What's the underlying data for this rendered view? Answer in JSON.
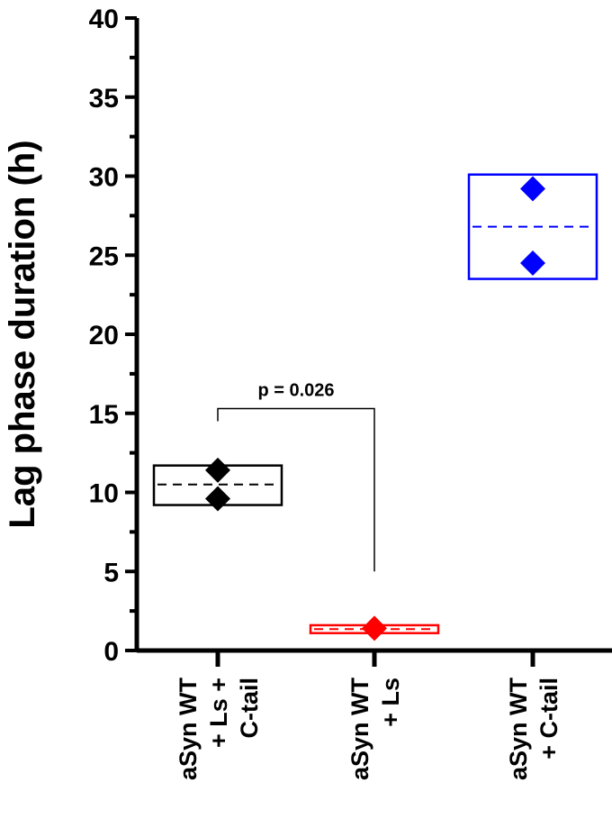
{
  "chart_data": {
    "type": "box",
    "ylabel": "Lag phase duration (h)",
    "ylim": [
      0,
      40
    ],
    "yticks": [
      "0",
      "5",
      "10",
      "15",
      "20",
      "25",
      "30",
      "35",
      "40"
    ],
    "groups": [
      {
        "label_lines": [
          "aSyn WT",
          "+ Ls +",
          "C-tail"
        ],
        "color": "#000000",
        "box": [
          9.2,
          11.7
        ],
        "mean": 10.5,
        "points": [
          11.4,
          9.6
        ]
      },
      {
        "label_lines": [
          "aSyn WT",
          "+ Ls"
        ],
        "color": "#ff0000",
        "box": [
          1.1,
          1.6
        ],
        "mean": 1.35,
        "points": [
          1.4
        ]
      },
      {
        "label_lines": [
          "aSyn WT",
          "+ C-tail"
        ],
        "color": "#0000ff",
        "box": [
          23.5,
          30.1
        ],
        "mean": 26.8,
        "points": [
          29.2,
          24.5
        ]
      }
    ],
    "annotation": {
      "text": "p = 0.026",
      "from_group": 0,
      "to_group": 1,
      "from_y": 15.3,
      "to_y": 5.0
    }
  }
}
